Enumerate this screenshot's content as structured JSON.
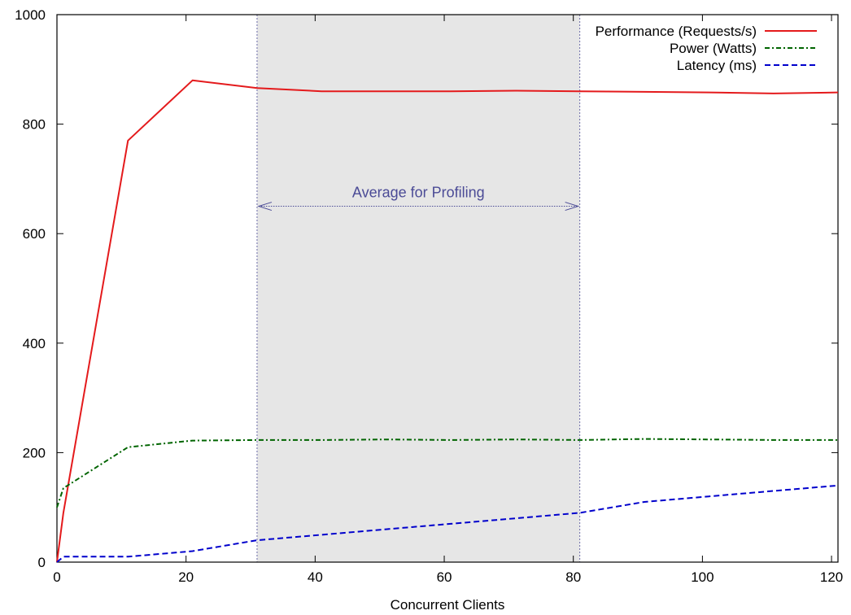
{
  "chart_data": {
    "type": "line",
    "title": "",
    "xlabel": "Concurrent Clients",
    "ylabel": "",
    "xlim": [
      0,
      121
    ],
    "ylim": [
      0,
      1000
    ],
    "x_ticks": [
      0,
      20,
      40,
      60,
      80,
      100,
      120
    ],
    "y_ticks": [
      0,
      200,
      400,
      600,
      800,
      1000
    ],
    "grid": false,
    "legend_position": "top-right",
    "series": [
      {
        "name": "Performance (Requests/s)",
        "color": "#e41a1c",
        "style": "solid",
        "points": [
          [
            0,
            0
          ],
          [
            1,
            90
          ],
          [
            11,
            770
          ],
          [
            21,
            880
          ],
          [
            31,
            866
          ],
          [
            41,
            860
          ],
          [
            51,
            860
          ],
          [
            61,
            860
          ],
          [
            71,
            861
          ],
          [
            81,
            860
          ],
          [
            91,
            859
          ],
          [
            101,
            858
          ],
          [
            111,
            856
          ],
          [
            121,
            858
          ]
        ]
      },
      {
        "name": "Power (Watts)",
        "color": "#006400",
        "style": "dash-dot",
        "points": [
          [
            0,
            100
          ],
          [
            1,
            135
          ],
          [
            11,
            210
          ],
          [
            21,
            222
          ],
          [
            31,
            223
          ],
          [
            41,
            223
          ],
          [
            51,
            224
          ],
          [
            61,
            223
          ],
          [
            71,
            224
          ],
          [
            81,
            223
          ],
          [
            91,
            225
          ],
          [
            101,
            224
          ],
          [
            111,
            223
          ],
          [
            121,
            223
          ]
        ]
      },
      {
        "name": "Latency (ms)",
        "color": "#0000cc",
        "style": "dashed",
        "points": [
          [
            0,
            0
          ],
          [
            1,
            10
          ],
          [
            11,
            10
          ],
          [
            21,
            20
          ],
          [
            31,
            40
          ],
          [
            41,
            50
          ],
          [
            51,
            60
          ],
          [
            61,
            70
          ],
          [
            71,
            80
          ],
          [
            81,
            90
          ],
          [
            91,
            110
          ],
          [
            101,
            120
          ],
          [
            111,
            130
          ],
          [
            121,
            140
          ]
        ]
      }
    ],
    "shaded_region": {
      "x_start": 31,
      "x_end": 81,
      "color": "#e6e6e6",
      "border_color": "#6a6aa8"
    },
    "annotation": {
      "text": "Average for Profiling",
      "x_start": 31,
      "x_end": 81,
      "y": 650,
      "color": "#4b4b96"
    }
  }
}
